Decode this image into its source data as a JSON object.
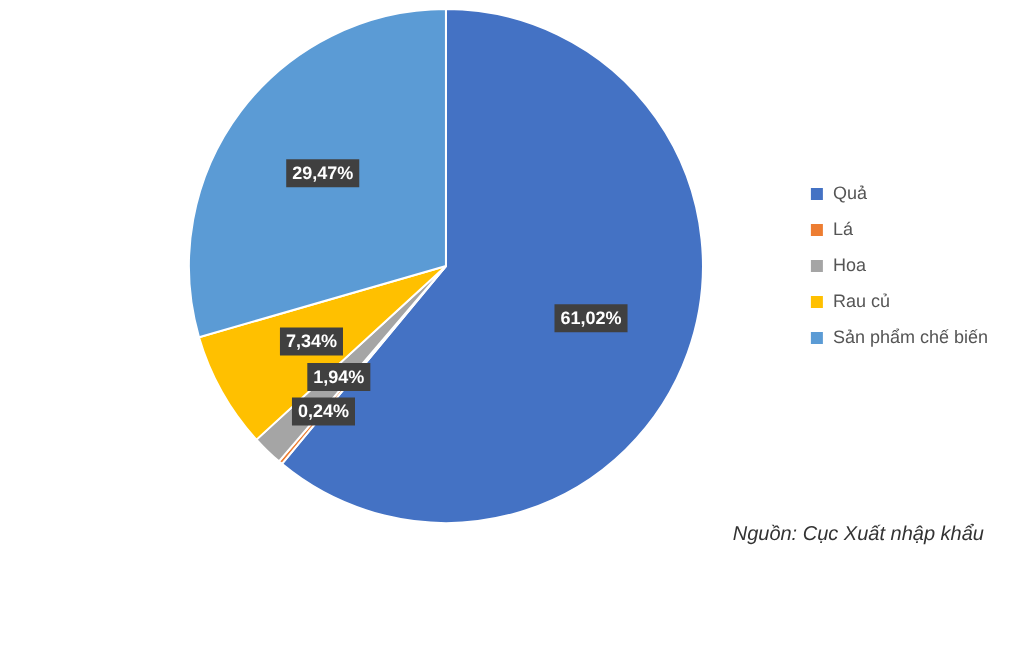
{
  "chart_data": {
    "type": "pie",
    "categories": [
      "Quả",
      "Lá",
      "Hoa",
      "Rau củ",
      "Sản phẩm chế biến"
    ],
    "values": [
      61.02,
      0.24,
      1.94,
      7.34,
      29.47
    ],
    "colors": [
      "#4472c4",
      "#ed7d31",
      "#a5a5a5",
      "#ffc000",
      "#5b9bd5"
    ],
    "value_labels": [
      "61,02%",
      "0,24%",
      "1,94%",
      "7,34%",
      "29,47%"
    ],
    "legend": "right",
    "annotations": [
      "Nguồn: Cục Xuất nhập khẩu"
    ]
  }
}
